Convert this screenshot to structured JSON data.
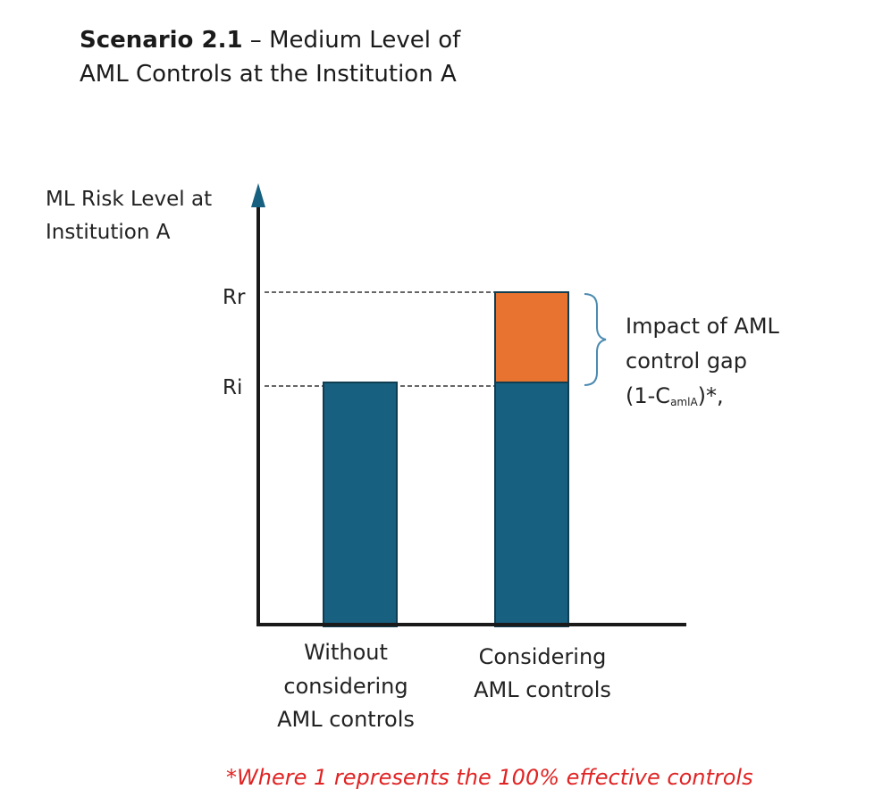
{
  "title": {
    "bold": "Scenario 2.1",
    "rest": " – Medium Level of",
    "line2": "AML Controls at the Institution A"
  },
  "y_axis": {
    "label_line1": "ML Risk Level at",
    "label_line2": "Institution A",
    "ticks": [
      "Rr",
      "Ri"
    ]
  },
  "bars": [
    {
      "label_lines": [
        "Without",
        "considering",
        "AML controls"
      ],
      "segments": [
        {
          "level": "Ri",
          "color": "#17607f"
        }
      ]
    },
    {
      "label_lines": [
        "Considering",
        "AML controls"
      ],
      "segments": [
        {
          "level": "Ri",
          "color": "#17607f"
        },
        {
          "level": "Rr",
          "color": "#e8722f"
        }
      ]
    }
  ],
  "annotation": {
    "line1": "Impact of AML",
    "line2": "control gap",
    "formula_prefix": "(1-C",
    "formula_sub": "amlA",
    "formula_suffix": ")*,",
    "brace_color": "#4a8ab0"
  },
  "footnote": "*Where 1 represents the 100% effective controls",
  "colors": {
    "bar_base": "#17607f",
    "bar_gap": "#e8722f",
    "axis": "#1a1a1a",
    "axis_arrow": "#17607f",
    "footnote": "#e02424"
  }
}
